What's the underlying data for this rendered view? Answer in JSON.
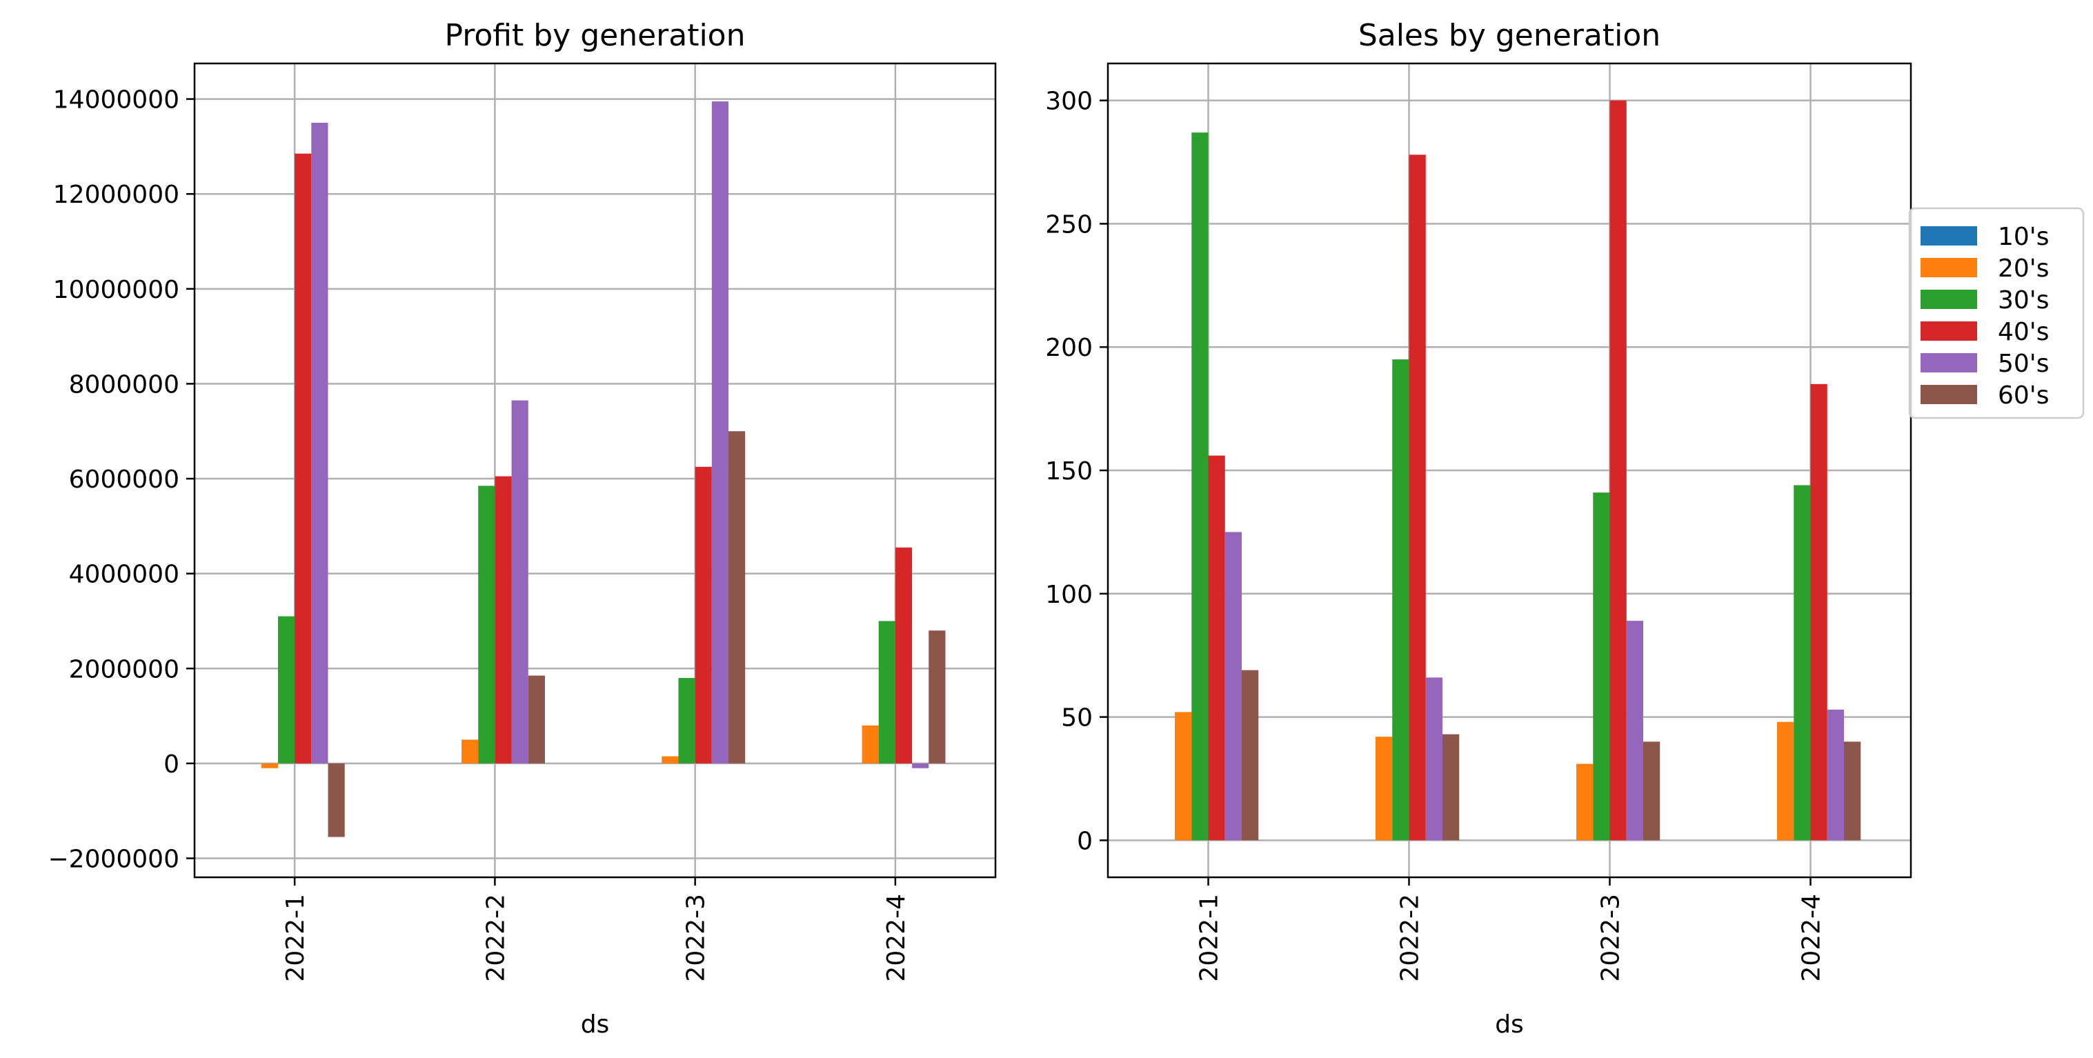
{
  "chart_data": [
    {
      "type": "bar",
      "title": "Profit by generation",
      "xlabel": "ds",
      "ylabel": "",
      "categories": [
        "2022-1",
        "2022-2",
        "2022-3",
        "2022-4"
      ],
      "ylim": [
        -2400000,
        14750000
      ],
      "yticks": [
        -2000000,
        0,
        2000000,
        4000000,
        6000000,
        8000000,
        10000000,
        12000000,
        14000000
      ],
      "ytick_labels": [
        "−2000000",
        "0",
        "2000000",
        "4000000",
        "6000000",
        "8000000",
        "10000000",
        "12000000",
        "14000000"
      ],
      "grid": true,
      "series": [
        {
          "name": "10's",
          "color": "#1f77b4",
          "values": [
            0,
            0,
            0,
            0
          ]
        },
        {
          "name": "20's",
          "color": "#ff7f0e",
          "values": [
            -100000,
            500000,
            150000,
            800000
          ]
        },
        {
          "name": "30's",
          "color": "#2ca02c",
          "values": [
            3100000,
            5850000,
            1800000,
            3000000
          ]
        },
        {
          "name": "40's",
          "color": "#d62728",
          "values": [
            12850000,
            6050000,
            6250000,
            4550000
          ]
        },
        {
          "name": "50's",
          "color": "#9467bd",
          "values": [
            13500000,
            7650000,
            13950000,
            -100000
          ]
        },
        {
          "name": "60's",
          "color": "#8c564b",
          "values": [
            -1550000,
            1850000,
            7000000,
            2800000
          ]
        }
      ]
    },
    {
      "type": "bar",
      "title": "Sales by generation",
      "xlabel": "ds",
      "ylabel": "",
      "categories": [
        "2022-1",
        "2022-2",
        "2022-3",
        "2022-4"
      ],
      "ylim": [
        -15,
        315
      ],
      "yticks": [
        0,
        50,
        100,
        150,
        200,
        250,
        300
      ],
      "ytick_labels": [
        "0",
        "50",
        "100",
        "150",
        "200",
        "250",
        "300"
      ],
      "grid": true,
      "legend_position": "outside-right",
      "series": [
        {
          "name": "10's",
          "color": "#1f77b4",
          "values": [
            0,
            0,
            0,
            0
          ]
        },
        {
          "name": "20's",
          "color": "#ff7f0e",
          "values": [
            52,
            42,
            31,
            48
          ]
        },
        {
          "name": "30's",
          "color": "#2ca02c",
          "values": [
            287,
            195,
            141,
            144
          ]
        },
        {
          "name": "40's",
          "color": "#d62728",
          "values": [
            156,
            278,
            300,
            185
          ]
        },
        {
          "name": "50's",
          "color": "#9467bd",
          "values": [
            125,
            66,
            89,
            53
          ]
        },
        {
          "name": "60's",
          "color": "#8c564b",
          "values": [
            69,
            43,
            40,
            40
          ]
        }
      ]
    }
  ]
}
